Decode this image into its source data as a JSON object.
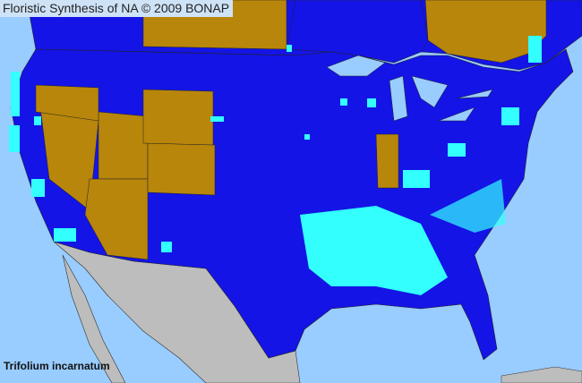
{
  "header": {
    "title": "Floristic Synthesis of NA © 2009 BONAP"
  },
  "map": {
    "species": "Trifolium incarnatum",
    "colors": {
      "ocean": "#99ccff",
      "present_state": "#1414e6",
      "absent_state": "#b8860b",
      "present_county": "#33ffff",
      "outside_region": "#bdbdbd"
    }
  }
}
